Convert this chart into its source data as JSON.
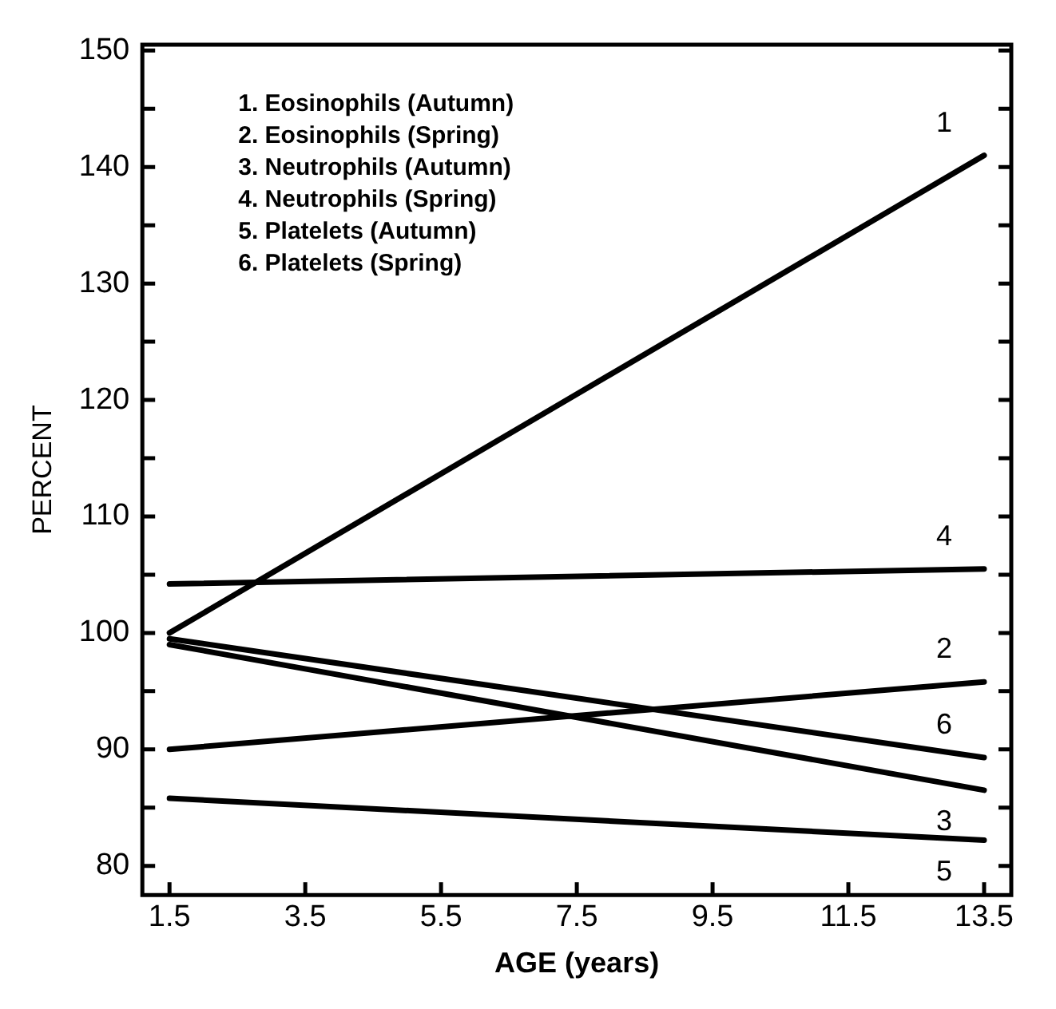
{
  "chart_data": {
    "type": "line",
    "xlabel": "AGE (years)",
    "ylabel": "PERCENT",
    "xlim": [
      1.1,
      13.9
    ],
    "xticks": [
      1.5,
      3.5,
      5.5,
      7.5,
      9.5,
      11.5,
      13.5
    ],
    "ylim": [
      77.5,
      150.5
    ],
    "yticks": [
      80,
      {
        "value": 85,
        "label": null
      },
      90,
      {
        "value": 95,
        "label": null
      },
      100,
      {
        "value": 105,
        "label": null
      },
      110,
      {
        "value": 115,
        "label": null
      },
      120,
      {
        "value": 125,
        "label": null
      },
      130,
      {
        "value": 135,
        "label": null
      },
      140,
      {
        "value": 145,
        "label": null
      },
      150
    ],
    "grid": false,
    "legend": "right",
    "marker": "none",
    "line_style": "solid",
    "x": [
      1.5,
      13.5
    ],
    "series": [
      {
        "name": "1",
        "color": "#000000",
        "values": [
          100,
          141
        ]
      },
      {
        "name": "2",
        "color": "#000000",
        "values": [
          90,
          95.8
        ]
      },
      {
        "name": "3",
        "color": "#000000",
        "values": [
          99,
          86.5
        ]
      },
      {
        "name": "4",
        "color": "#000000",
        "values": [
          104.2,
          105.5
        ]
      },
      {
        "name": "5",
        "color": "#000000",
        "values": [
          85.8,
          82.2
        ]
      },
      {
        "name": "6",
        "color": "#000000",
        "values": [
          99.5,
          89.3
        ]
      }
    ],
    "annotations": [
      "1. Eosinophils (Autumn)",
      "2. Eosinophils (Spring)",
      "3. Neutrophils (Autumn)",
      "4. Neutrophils (Spring)",
      "5. Platelets (Autumn)",
      "6. Platelets (Spring)"
    ]
  }
}
